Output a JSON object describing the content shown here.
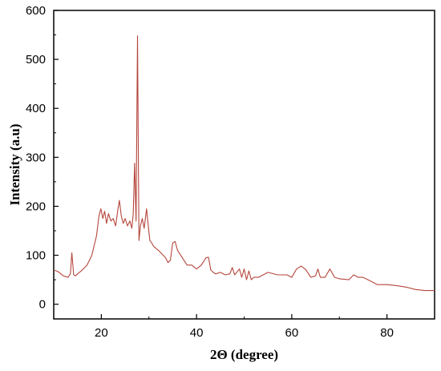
{
  "chart_data": {
    "type": "line",
    "title": "",
    "xlabel": "2Θ (degree)",
    "ylabel": "Intensity (a.u)",
    "xlim": [
      10,
      90
    ],
    "ylim": [
      -30,
      600
    ],
    "x_ticks": [
      20,
      40,
      60,
      80
    ],
    "x_tick_labels": [
      "20",
      "40",
      "60",
      "80"
    ],
    "y_ticks": [
      0,
      100,
      200,
      300,
      400,
      500,
      600
    ],
    "y_tick_labels": [
      "0",
      "100",
      "200",
      "300",
      "400",
      "500",
      "600"
    ],
    "grid": false,
    "legend": "none",
    "line_color": "#b5463c",
    "series": [
      {
        "x": [
          10,
          11,
          12,
          13,
          13.5,
          13.8,
          14.2,
          14.6,
          15,
          16,
          17,
          18,
          19,
          19.5,
          19.9,
          20.3,
          20.7,
          21.1,
          21.5,
          22,
          22.5,
          23,
          23.5,
          23.8,
          24.2,
          24.6,
          25,
          25.5,
          26,
          26.4,
          26.7,
          27,
          27.3,
          27.6,
          27.9,
          28.2,
          28.6,
          29,
          29.5,
          29.8,
          30.2,
          30.6,
          31,
          32,
          33,
          33.5,
          34,
          34.5,
          35,
          35.5,
          36,
          37,
          38,
          39,
          40,
          41,
          42,
          42.5,
          43,
          43.5,
          44,
          45,
          46,
          47,
          47.5,
          48,
          49,
          49.5,
          50,
          50.5,
          51,
          51.5,
          52,
          53,
          55,
          57,
          59,
          60,
          61,
          62,
          63,
          64,
          65,
          65.5,
          66,
          67,
          68,
          69,
          70,
          72,
          73,
          74,
          75,
          76,
          78,
          80,
          82,
          84,
          86,
          88,
          90
        ],
        "y": [
          70,
          66,
          58,
          55,
          62,
          105,
          60,
          58,
          62,
          70,
          80,
          100,
          140,
          180,
          195,
          175,
          190,
          165,
          185,
          170,
          175,
          160,
          195,
          212,
          180,
          165,
          175,
          160,
          170,
          155,
          185,
          288,
          170,
          548,
          130,
          160,
          175,
          155,
          195,
          165,
          130,
          125,
          118,
          110,
          100,
          95,
          85,
          90,
          125,
          128,
          110,
          95,
          80,
          80,
          72,
          80,
          95,
          96,
          70,
          65,
          62,
          65,
          60,
          62,
          75,
          60,
          72,
          55,
          72,
          50,
          68,
          50,
          55,
          55,
          65,
          60,
          60,
          55,
          72,
          78,
          70,
          55,
          58,
          72,
          55,
          55,
          72,
          55,
          52,
          50,
          60,
          55,
          55,
          50,
          40,
          40,
          38,
          35,
          30,
          28,
          28
        ]
      }
    ]
  }
}
